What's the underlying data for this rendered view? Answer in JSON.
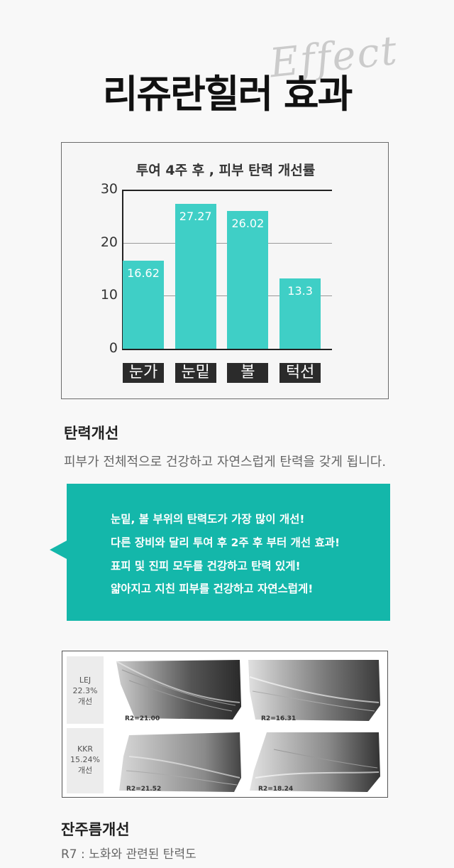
{
  "header": {
    "title": "리쥬란힐러 효과",
    "script_word": "Effect"
  },
  "chart": {
    "title": "투여 4주 후 , 피부 탄력 개선률"
  },
  "chart_data": {
    "type": "bar",
    "title": "투여 4주 후 , 피부 탄력 개선률",
    "categories": [
      "눈가",
      "눈밑",
      "볼",
      "턱선"
    ],
    "values": [
      16.62,
      27.27,
      26.02,
      13.3
    ],
    "value_labels": [
      "16.62",
      "27.27",
      "26.02",
      "13.3"
    ],
    "yticks": [
      "0",
      "10",
      "20",
      "30"
    ],
    "ylim": [
      0,
      30
    ],
    "grid": true,
    "bar_color": "#3fcfc6"
  },
  "elasticity": {
    "heading": "탄력개선",
    "description": "피부가 전체적으로 건강하고 자연스럽게 탄력을 갖게 됩니다."
  },
  "bubble": {
    "lines": [
      "눈밑, 볼 부위의 탄력도가 가장 많이 개선!",
      "다른 장비와 달리 투여 후 2주 후 부터 개선 효과!",
      "표피 및 진피 모두를 건강하고 탄력 있게!",
      "얇아지고 지친 피부를 건강하고 자연스럽게!"
    ],
    "color": "#14b7aa"
  },
  "skin_images": {
    "rows": [
      {
        "label_lines": [
          "LEJ",
          "22.3%",
          "개선"
        ],
        "before": "R2=21.00",
        "after": "R2=16.31"
      },
      {
        "label_lines": [
          "KKR",
          "15.24%",
          "개선"
        ],
        "before": "R2=21.52",
        "after": "R2=18.24"
      }
    ]
  },
  "wrinkle": {
    "heading": "잔주름개선",
    "description": "R7 : 노화와 관련된 탄력도"
  }
}
